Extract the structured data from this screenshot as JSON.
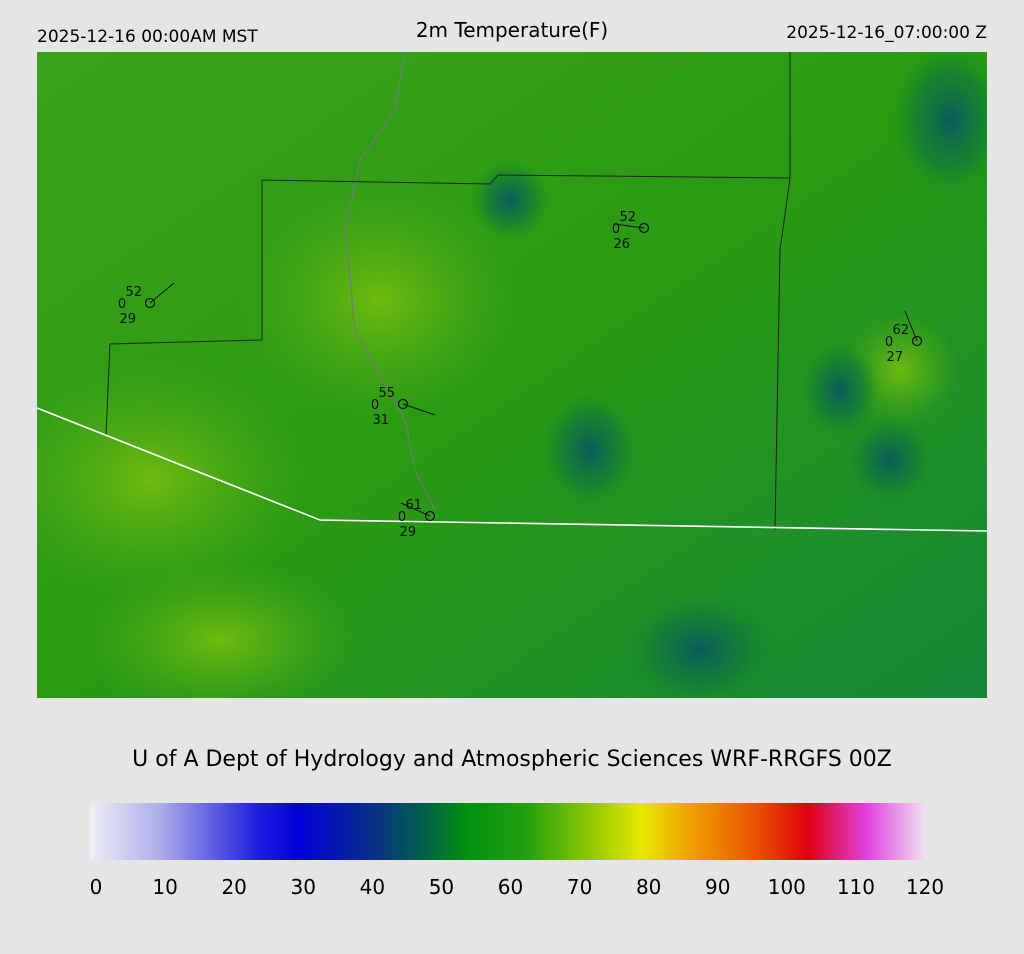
{
  "header": {
    "left": "2025-12-16 00:00AM MST",
    "title": "2m Temperature(F)",
    "right": "2025-12-16_07:00:00 Z"
  },
  "stations": [
    {
      "temp": 52,
      "sky": 0,
      "dewpoint": 29
    },
    {
      "temp": 52,
      "sky": 0,
      "dewpoint": 26
    },
    {
      "temp": 62,
      "sky": 0,
      "dewpoint": 27
    },
    {
      "temp": 55,
      "sky": 0,
      "dewpoint": 31
    },
    {
      "temp": 61,
      "sky": 0,
      "dewpoint": 29
    }
  ],
  "footer": "U of A Dept of Hydrology and Atmospheric Sciences WRF-RRGFS 00Z",
  "colorbar": {
    "ticks": [
      0,
      10,
      20,
      30,
      40,
      50,
      60,
      70,
      80,
      90,
      100,
      110,
      120
    ]
  }
}
